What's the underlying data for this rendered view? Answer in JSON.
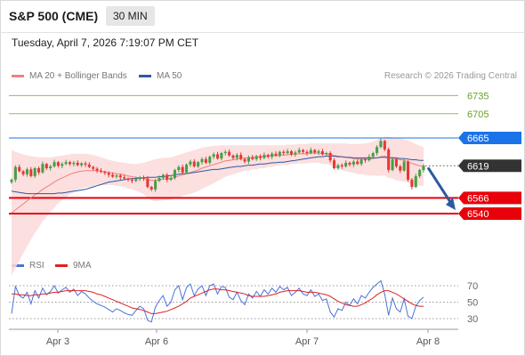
{
  "header": {
    "title": "S&P 500 (CME)",
    "timeframe": "30 MIN",
    "timestamp": "Tuesday, April 7, 2026 7:19:07 PM CET"
  },
  "legend": {
    "ma20": {
      "label": "MA 20 + Bollinger Bands",
      "color": "#f08080"
    },
    "ma50": {
      "label": "MA 50",
      "color": "#2c5aa0"
    },
    "credit": "Research © 2026 Trading Central"
  },
  "rsi_legend": {
    "rsi": {
      "label": "RSI",
      "color": "#4a72d8"
    },
    "ma9": {
      "label": "9MA",
      "color": "#e02020"
    }
  },
  "chart_data": [
    {
      "type": "candlestick",
      "ylim": [
        6490,
        6760
      ],
      "x_ticks": [
        "Apr 3",
        "Apr 6",
        "Apr 7",
        "Apr 8"
      ],
      "levels": [
        {
          "value": 6735,
          "label": "6735",
          "kind": "resistance",
          "color": "#8bc34a"
        },
        {
          "value": 6705,
          "label": "6705",
          "kind": "resistance",
          "color": "#8bc34a"
        },
        {
          "value": 6665,
          "label": "6665",
          "kind": "pivot",
          "color": "#1a73e8"
        },
        {
          "value": 6619,
          "label": "6619",
          "kind": "last-price",
          "color": "#333333"
        },
        {
          "value": 6566,
          "label": "6566",
          "kind": "support",
          "color": "#e8000a"
        },
        {
          "value": 6540,
          "label": "6540",
          "kind": "support",
          "color": "#e8000a"
        }
      ],
      "close": [
        6596,
        6617,
        6610,
        6605,
        6613,
        6602,
        6615,
        6608,
        6622,
        6615,
        6618,
        6625,
        6619,
        6622,
        6625,
        6622,
        6624,
        6620,
        6623,
        6621,
        6617,
        6614,
        6611,
        6609,
        6607,
        6604,
        6601,
        6603,
        6600,
        6598,
        6596,
        6594,
        6597,
        6600,
        6598,
        6584,
        6580,
        6594,
        6599,
        6604,
        6596,
        6599,
        6612,
        6617,
        6608,
        6621,
        6626,
        6618,
        6625,
        6630,
        6624,
        6634,
        6638,
        6631,
        6640,
        6642,
        6636,
        6632,
        6637,
        6630,
        6626,
        6633,
        6630,
        6635,
        6632,
        6637,
        6634,
        6639,
        6636,
        6642,
        6640,
        6643,
        6638,
        6641,
        6645,
        6642,
        6640,
        6645,
        6641,
        6643,
        6638,
        6640,
        6628,
        6615,
        6620,
        6618,
        6624,
        6621,
        6626,
        6622,
        6630,
        6628,
        6634,
        6640,
        6650,
        6660,
        6646,
        6612,
        6630,
        6618,
        6611,
        6626,
        6596,
        6584,
        6602,
        6612,
        6619
      ],
      "ma20": [
        6541,
        6546,
        6551,
        6556,
        6561,
        6566,
        6571,
        6575,
        6580,
        6584,
        6588,
        6592,
        6596,
        6599,
        6602,
        6605,
        6607,
        6609,
        6610,
        6611,
        6611,
        6611,
        6611,
        6610,
        6609,
        6608,
        6607,
        6606,
        6605,
        6604,
        6602,
        6601,
        6600,
        6599,
        6598,
        6596,
        6595,
        6595,
        6596,
        6597,
        6597,
        6598,
        6600,
        6602,
        6604,
        6606,
        6608,
        6610,
        6612,
        6615,
        6617,
        6619,
        6621,
        6623,
        6625,
        6627,
        6628,
        6629,
        6630,
        6631,
        6632,
        6632,
        6633,
        6633,
        6634,
        6634,
        6635,
        6635,
        6636,
        6636,
        6637,
        6637,
        6638,
        6638,
        6639,
        6639,
        6639,
        6640,
        6640,
        6640,
        6639,
        6639,
        6638,
        6636,
        6635,
        6634,
        6633,
        6632,
        6631,
        6630,
        6630,
        6630,
        6630,
        6631,
        6632,
        6634,
        6635,
        6633,
        6632,
        6630,
        6629,
        6628,
        6626,
        6623,
        6621,
        6619,
        6618
      ],
      "bb_upper": [
        6645,
        6642,
        6640,
        6638,
        6636,
        6635,
        6634,
        6633,
        6633,
        6633,
        6633,
        6634,
        6635,
        6636,
        6637,
        6638,
        6639,
        6639,
        6639,
        6639,
        6638,
        6637,
        6635,
        6633,
        6631,
        6629,
        6627,
        6626,
        6625,
        6624,
        6623,
        6622,
        6622,
        6623,
        6624,
        6626,
        6628,
        6630,
        6631,
        6632,
        6632,
        6633,
        6635,
        6637,
        6639,
        6641,
        6643,
        6645,
        6647,
        6649,
        6650,
        6651,
        6652,
        6652,
        6653,
        6653,
        6653,
        6653,
        6653,
        6653,
        6653,
        6653,
        6653,
        6653,
        6653,
        6653,
        6653,
        6653,
        6653,
        6653,
        6653,
        6654,
        6654,
        6654,
        6655,
        6655,
        6655,
        6656,
        6656,
        6656,
        6656,
        6656,
        6656,
        6656,
        6656,
        6656,
        6656,
        6655,
        6655,
        6655,
        6655,
        6656,
        6657,
        6659,
        6662,
        6665,
        6667,
        6667,
        6666,
        6665,
        6664,
        6663,
        6661,
        6658,
        6655,
        6652,
        6650
      ],
      "bb_lower": [
        6437,
        6450,
        6462,
        6474,
        6486,
        6497,
        6508,
        6517,
        6527,
        6535,
        6543,
        6550,
        6557,
        6562,
        6567,
        6572,
        6575,
        6579,
        6581,
        6583,
        6584,
        6585,
        6587,
        6587,
        6587,
        6587,
        6587,
        6586,
        6585,
        6584,
        6581,
        6580,
        6578,
        6575,
        6572,
        6566,
        6562,
        6560,
        6561,
        6562,
        6562,
        6563,
        6565,
        6567,
        6569,
        6571,
        6573,
        6575,
        6577,
        6581,
        6584,
        6587,
        6590,
        6594,
        6597,
        6601,
        6603,
        6605,
        6607,
        6609,
        6611,
        6611,
        6613,
        6613,
        6615,
        6615,
        6617,
        6617,
        6619,
        6619,
        6621,
        6620,
        6622,
        6622,
        6623,
        6623,
        6623,
        6624,
        6624,
        6624,
        6622,
        6622,
        6620,
        6616,
        6614,
        6612,
        6610,
        6609,
        6607,
        6605,
        6605,
        6604,
        6603,
        6603,
        6602,
        6603,
        6603,
        6599,
        6598,
        6595,
        6594,
        6593,
        6591,
        6588,
        6587,
        6586,
        6586
      ],
      "ma50": [
        6577,
        6576,
        6575,
        6574,
        6573,
        6573,
        6573,
        6573,
        6573,
        6573,
        6573,
        6573,
        6574,
        6574,
        6575,
        6576,
        6577,
        6578,
        6579,
        6580,
        6582,
        6584,
        6586,
        6588,
        6590,
        6592,
        6593,
        6594,
        6595,
        6596,
        6597,
        6598,
        6598,
        6599,
        6599,
        6600,
        6600,
        6600,
        6601,
        6601,
        6602,
        6603,
        6604,
        6605,
        6606,
        6606,
        6607,
        6608,
        6609,
        6610,
        6611,
        6612,
        6613,
        6613,
        6614,
        6615,
        6616,
        6617,
        6618,
        6618,
        6619,
        6620,
        6620,
        6621,
        6622,
        6622,
        6623,
        6624,
        6624,
        6625,
        6625,
        6626,
        6627,
        6628,
        6629,
        6630,
        6631,
        6632,
        6633,
        6634,
        6634,
        6635,
        6635,
        6635,
        6634,
        6634,
        6633,
        6633,
        6632,
        6632,
        6632,
        6632,
        6632,
        6632,
        6632,
        6633,
        6633,
        6632,
        6632,
        6632,
        6631,
        6631,
        6630,
        6629,
        6629,
        6628,
        6628
      ]
    },
    {
      "type": "line",
      "name": "RSI",
      "ylim": [
        25,
        78
      ],
      "y_ticks": [
        70,
        50,
        30
      ],
      "rsi": [
        36,
        69,
        58,
        55,
        62,
        48,
        64,
        55,
        67,
        59,
        63,
        70,
        61,
        65,
        68,
        62,
        66,
        58,
        63,
        60,
        55,
        51,
        48,
        46,
        44,
        41,
        38,
        42,
        40,
        37,
        35,
        34,
        40,
        45,
        42,
        28,
        26,
        44,
        52,
        58,
        45,
        50,
        65,
        70,
        53,
        68,
        72,
        58,
        66,
        70,
        58,
        70,
        72,
        60,
        69,
        68,
        56,
        53,
        62,
        52,
        47,
        60,
        55,
        63,
        57,
        65,
        60,
        67,
        62,
        69,
        65,
        68,
        58,
        62,
        67,
        60,
        58,
        65,
        57,
        60,
        52,
        54,
        38,
        32,
        42,
        40,
        50,
        46,
        54,
        48,
        58,
        55,
        62,
        68,
        72,
        76,
        60,
        34,
        55,
        42,
        38,
        54,
        33,
        30,
        45,
        52,
        56
      ],
      "ma9": [
        60,
        60,
        59,
        59,
        58,
        58,
        59,
        59,
        60,
        60,
        61,
        62,
        62,
        63,
        64,
        64,
        64,
        64,
        64,
        64,
        63,
        62,
        60,
        59,
        57,
        55,
        53,
        51,
        49,
        47,
        45,
        43,
        42,
        41,
        40,
        38,
        36,
        36,
        37,
        38,
        39,
        41,
        43,
        45,
        48,
        51,
        55,
        57,
        59,
        61,
        63,
        65,
        66,
        66,
        65,
        65,
        64,
        63,
        62,
        61,
        60,
        58,
        57,
        57,
        57,
        57,
        58,
        59,
        60,
        62,
        63,
        64,
        64,
        64,
        64,
        63,
        62,
        62,
        62,
        61,
        60,
        59,
        57,
        54,
        51,
        49,
        47,
        46,
        45,
        45,
        47,
        49,
        52,
        55,
        59,
        62,
        64,
        64,
        62,
        60,
        57,
        54,
        51,
        48,
        46,
        45,
        45
      ]
    }
  ]
}
